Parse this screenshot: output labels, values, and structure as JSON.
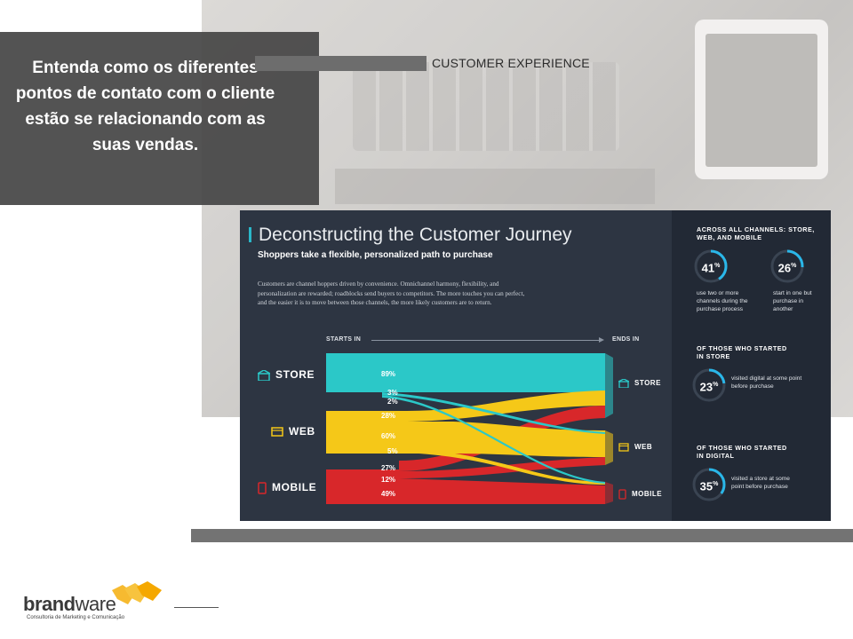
{
  "slide": {
    "intro_text": "Entenda como os diferentes pontos de contato com o cliente estão se relacionando com as suas vendas.",
    "section_header": "CUSTOMER EXPERIENCE"
  },
  "logo": {
    "word_part1": "brand",
    "word_part2": "ware",
    "tagline": "Consultoria de Marketing e Comunicação",
    "colors": {
      "arrows": "#f5b21a",
      "text": "#3a3a3a"
    }
  },
  "infographic": {
    "title": "Deconstructing the Customer Journey",
    "subtitle": "Shoppers take a flexible, personalized path to purchase",
    "body": "Customers are channel hoppers driven by convenience. Omnichannel harmony, flexibility, and personalization are rewarded; roadblocks send buyers to competitors. The more touches you can perfect, and the easier it is to move between those channels, the more likely customers are to return.",
    "starts_in_label": "STARTS IN",
    "ends_in_label": "ENDS IN",
    "channels": [
      {
        "name": "STORE",
        "icon": "store-icon",
        "color": "#2bc8c8"
      },
      {
        "name": "WEB",
        "icon": "web-icon",
        "color": "#f5c818"
      },
      {
        "name": "MOBILE",
        "icon": "mobile-icon",
        "color": "#d8272a"
      }
    ],
    "flows": [
      {
        "from": "STORE",
        "to": "STORE",
        "pct": "89%"
      },
      {
        "from": "STORE",
        "to": "WEB",
        "pct": "3%"
      },
      {
        "from": "STORE",
        "to": "MOBILE",
        "pct": "2%"
      },
      {
        "from": "WEB",
        "to": "STORE",
        "pct": "28%"
      },
      {
        "from": "WEB",
        "to": "WEB",
        "pct": "60%"
      },
      {
        "from": "WEB",
        "to": "MOBILE",
        "pct": "5%"
      },
      {
        "from": "MOBILE",
        "to": "STORE",
        "pct": "27%"
      },
      {
        "from": "MOBILE",
        "to": "WEB",
        "pct": "12%"
      },
      {
        "from": "MOBILE",
        "to": "MOBILE",
        "pct": "49%"
      }
    ],
    "right_panel": {
      "header1": "ACROSS ALL CHANNELS: STORE, WEB, AND MOBILE",
      "stat1_value": "41",
      "stat1_fraction": 0.41,
      "stat1_text": "use two or more channels during the purchase process",
      "stat2_value": "26",
      "stat2_fraction": 0.26,
      "stat2_text": "start in one but purchase in another",
      "header2": "OF THOSE WHO STARTED IN STORE",
      "stat3_value": "23",
      "stat3_fraction": 0.23,
      "stat3_text": "visited digital at some point before purchase",
      "header3": "OF THOSE WHO STARTED IN DIGITAL",
      "stat4_value": "35",
      "stat4_fraction": 0.35,
      "stat4_text": "visited a store at some point before purchase",
      "pct_sign": "%",
      "ring_color": "#2ab7e9"
    }
  }
}
